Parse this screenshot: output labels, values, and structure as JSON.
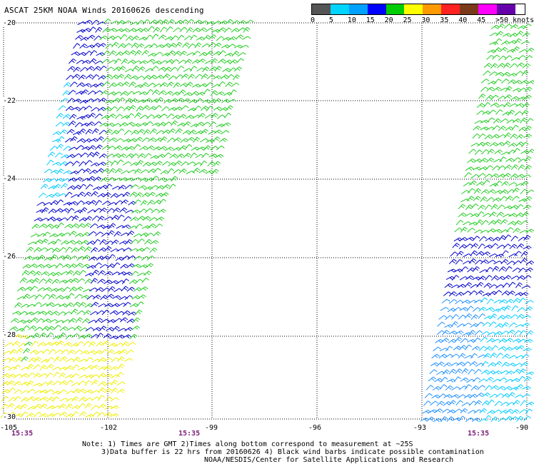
{
  "header": {
    "title": "ASCAT 25KM NOAA Winds 20160626 descending"
  },
  "color_scale": {
    "labels": [
      "0",
      "5",
      "10",
      "15",
      "20",
      "25",
      "30",
      "35",
      "40",
      "45",
      ">50 knots"
    ],
    "colors": [
      "#555555",
      "#00d4ff",
      "#00a0ff",
      "#0000ff",
      "#00cc00",
      "#ffff00",
      "#ff9900",
      "#ff2222",
      "#7a3a1a",
      "#ff00ff",
      "#6600aa"
    ]
  },
  "axes": {
    "lat_labels": [
      "-20",
      "-22",
      "-24",
      "-26",
      "-28",
      "-30"
    ],
    "lon_labels": [
      "-105",
      "-102",
      "-99",
      "-96",
      "-93",
      "-90"
    ]
  },
  "pass_times": [
    "15:35",
    "15:35",
    "15:35"
  ],
  "notes": {
    "line1": "Note: 1) Times are GMT 2)Times along bottom correspond to measurement at ~25S",
    "line2": "3)Data buffer is 22 hrs from 20160626 4) Black wind barbs indicate possible contamination",
    "line3": "NOAA/NESDIS/Center for Satellite Applications and Research"
  },
  "wind_colors": {
    "calm": "#00ccff",
    "light": "#1e90ff",
    "moderate": "#0000cc",
    "fresh": "#22cc22",
    "strong": "#009900",
    "gale": "#eeee00",
    "contaminated": "#000000"
  }
}
